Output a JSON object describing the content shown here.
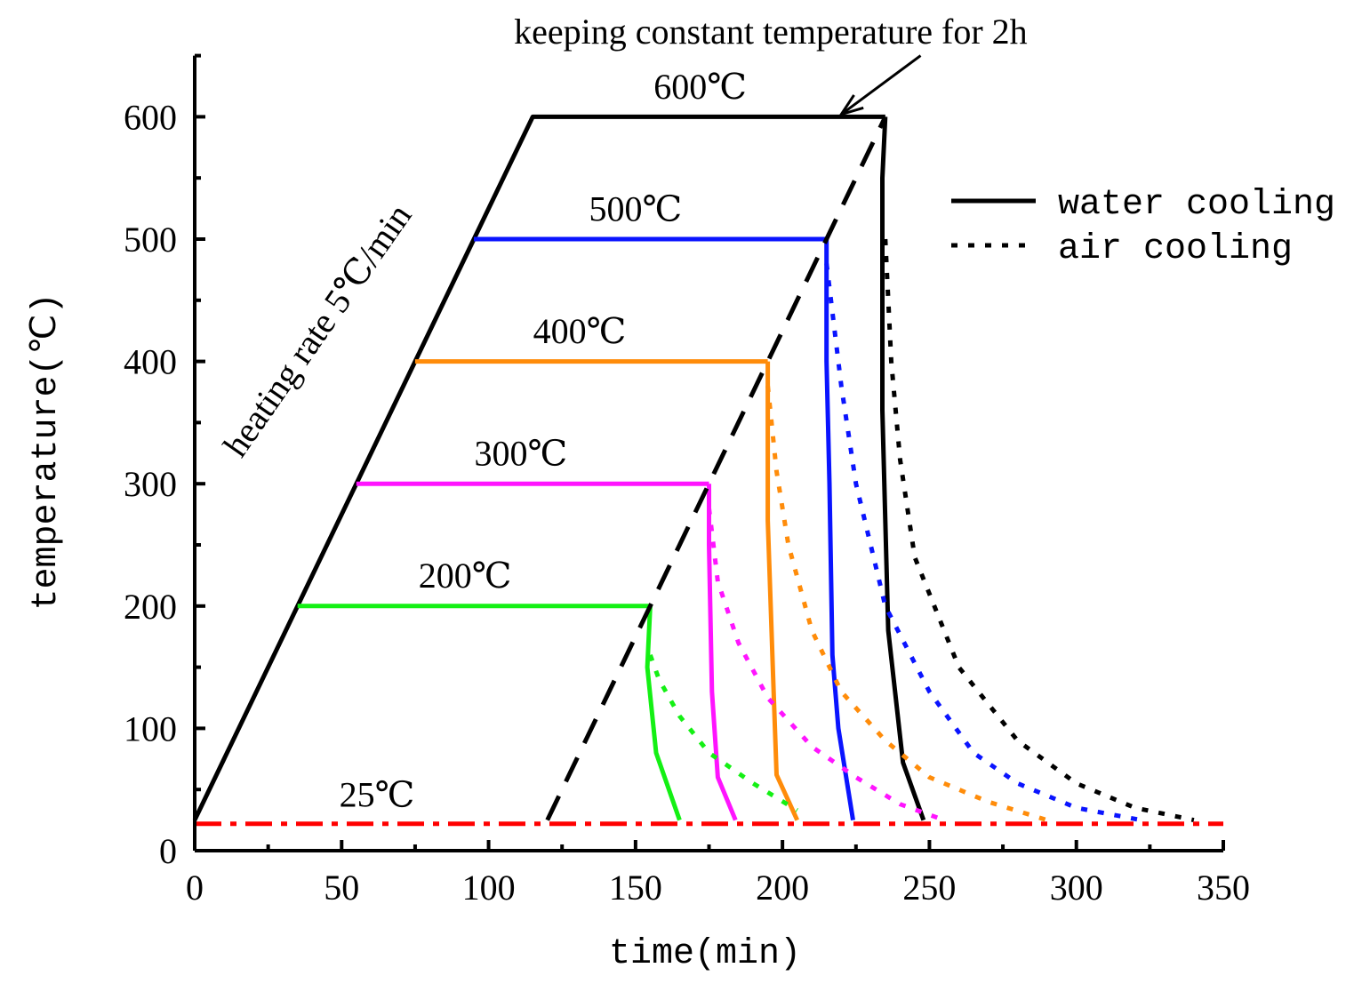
{
  "chart_data": {
    "type": "line",
    "title": "",
    "xlabel": "time(min)",
    "ylabel": "temperature(℃)",
    "xlim": [
      0,
      350
    ],
    "ylim": [
      0,
      650
    ],
    "x_major_ticks": [
      0,
      50,
      100,
      150,
      200,
      250,
      300,
      350
    ],
    "x_tick_labels": [
      "0",
      "50",
      "100",
      "150",
      "200",
      "250",
      "300",
      "350"
    ],
    "y_major_ticks": [
      0,
      100,
      200,
      300,
      400,
      500,
      600
    ],
    "y_tick_labels": [
      "0",
      "100",
      "200",
      "300",
      "400",
      "500",
      "600"
    ],
    "grid": false,
    "legend": {
      "placement": "top-right",
      "entries": [
        {
          "label": "water cooling",
          "style": "solid",
          "color": "#000000"
        },
        {
          "label": "air cooling",
          "style": "dotted",
          "color": "#000000"
        }
      ]
    },
    "series": [
      {
        "name": "heating 600°C",
        "color": "#000000",
        "style": "solid",
        "points": [
          [
            0,
            25
          ],
          [
            115,
            600
          ],
          [
            235,
            600
          ]
        ]
      },
      {
        "name": "hold 500°C",
        "color": "#0a14ff",
        "style": "solid",
        "points": [
          [
            95,
            500
          ],
          [
            215,
            500
          ]
        ]
      },
      {
        "name": "hold 400°C",
        "color": "#ff8c0a",
        "style": "solid",
        "points": [
          [
            75,
            400
          ],
          [
            195,
            400
          ]
        ]
      },
      {
        "name": "hold 300°C",
        "color": "#ff14ff",
        "style": "solid",
        "points": [
          [
            55,
            300
          ],
          [
            175,
            300
          ]
        ]
      },
      {
        "name": "hold 200°C",
        "color": "#14f014",
        "style": "solid",
        "points": [
          [
            35,
            200
          ],
          [
            155,
            200
          ]
        ]
      },
      {
        "name": "water cooling 600°C",
        "color": "#000000",
        "style": "solid",
        "points": [
          [
            235,
            600
          ],
          [
            234,
            550
          ],
          [
            234,
            360
          ],
          [
            236,
            180
          ],
          [
            241,
            72
          ],
          [
            248,
            25
          ]
        ]
      },
      {
        "name": "water cooling 500°C",
        "color": "#0a14ff",
        "style": "solid",
        "points": [
          [
            215,
            500
          ],
          [
            215,
            400
          ],
          [
            216,
            300
          ],
          [
            217,
            160
          ],
          [
            219,
            100
          ],
          [
            224,
            25
          ]
        ]
      },
      {
        "name": "water cooling 400°C",
        "color": "#ff8c0a",
        "style": "solid",
        "points": [
          [
            195,
            400
          ],
          [
            195,
            350
          ],
          [
            195,
            270
          ],
          [
            197,
            130
          ],
          [
            198,
            62
          ],
          [
            205,
            25
          ]
        ]
      },
      {
        "name": "water cooling 300°C",
        "color": "#ff14ff",
        "style": "solid",
        "points": [
          [
            175,
            300
          ],
          [
            175,
            250
          ],
          [
            176,
            130
          ],
          [
            178,
            60
          ],
          [
            184,
            25
          ]
        ]
      },
      {
        "name": "water cooling 200°C",
        "color": "#14f014",
        "style": "solid",
        "points": [
          [
            155,
            200
          ],
          [
            154,
            150
          ],
          [
            157,
            80
          ],
          [
            165,
            25
          ]
        ]
      },
      {
        "name": "air cooling 600°C",
        "color": "#000000",
        "style": "dotted",
        "points": [
          [
            235,
            500
          ],
          [
            237,
            400
          ],
          [
            240,
            320
          ],
          [
            245,
            240
          ],
          [
            260,
            150
          ],
          [
            280,
            90
          ],
          [
            300,
            55
          ],
          [
            320,
            35
          ],
          [
            340,
            25
          ]
        ]
      },
      {
        "name": "air cooling 500°C",
        "color": "#0a14ff",
        "style": "dotted",
        "points": [
          [
            215,
            480
          ],
          [
            220,
            380
          ],
          [
            225,
            300
          ],
          [
            235,
            200
          ],
          [
            250,
            130
          ],
          [
            265,
            80
          ],
          [
            280,
            55
          ],
          [
            300,
            35
          ],
          [
            322,
            25
          ]
        ]
      },
      {
        "name": "air cooling 400°C",
        "color": "#ff8c0a",
        "style": "dotted",
        "points": [
          [
            195,
            380
          ],
          [
            198,
            310
          ],
          [
            202,
            250
          ],
          [
            210,
            180
          ],
          [
            220,
            130
          ],
          [
            235,
            90
          ],
          [
            250,
            60
          ],
          [
            270,
            40
          ],
          [
            290,
            25
          ]
        ]
      },
      {
        "name": "air cooling 300°C",
        "color": "#ff14ff",
        "style": "dotted",
        "points": [
          [
            175,
            280
          ],
          [
            178,
            220
          ],
          [
            185,
            170
          ],
          [
            195,
            125
          ],
          [
            210,
            85
          ],
          [
            225,
            60
          ],
          [
            240,
            38
          ],
          [
            255,
            25
          ]
        ]
      },
      {
        "name": "air cooling 200°C",
        "color": "#14f014",
        "style": "dotted",
        "points": [
          [
            155,
            160
          ],
          [
            158,
            140
          ],
          [
            165,
            110
          ],
          [
            175,
            80
          ],
          [
            190,
            55
          ],
          [
            205,
            33
          ]
        ]
      },
      {
        "name": "envelope",
        "color": "#000000",
        "style": "dashed",
        "points": [
          [
            120,
            25
          ],
          [
            235,
            600
          ]
        ]
      },
      {
        "name": "room temperature",
        "color": "#ff0000",
        "style": "dashdot",
        "points": [
          [
            0,
            22
          ],
          [
            350,
            22
          ]
        ]
      }
    ],
    "annotations": [
      {
        "text": "keeping constant temperature for 2h",
        "x": 196,
        "y": 660
      },
      {
        "text": "600℃",
        "x": 172,
        "y": 615
      },
      {
        "text": "500℃",
        "x": 150,
        "y": 515
      },
      {
        "text": "400℃",
        "x": 131,
        "y": 415
      },
      {
        "text": "300℃",
        "x": 111,
        "y": 315
      },
      {
        "text": "200℃",
        "x": 92,
        "y": 215
      },
      {
        "text": "25℃",
        "x": 62,
        "y": 36
      },
      {
        "text": "heating rate 5℃/min",
        "x": 45,
        "y": 420
      }
    ],
    "arrow": {
      "from": [
        247,
        650
      ],
      "to": [
        220,
        602
      ]
    }
  }
}
